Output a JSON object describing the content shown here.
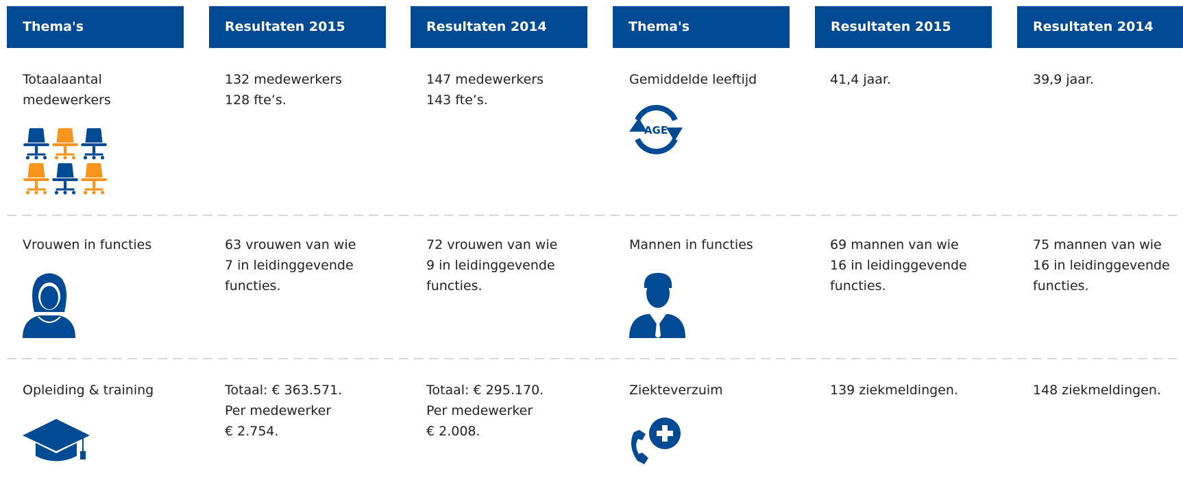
{
  "header": [
    "Thema's",
    "Resultaten 2015",
    "Resultaten 2014",
    "Thema's",
    "Resultaten 2015",
    "Resultaten 2014"
  ],
  "rows": [
    {
      "cells": [
        [
          "Totaalaantal",
          "medewerkers"
        ],
        [
          "132 medewerkers",
          "128 fte’s."
        ],
        [
          "147 medewerkers",
          "143 fte’s."
        ],
        [
          "Gemiddelde leeftijd"
        ],
        [
          "41,4 jaar."
        ],
        [
          "39,9 jaar."
        ]
      ]
    },
    {
      "cells": [
        [
          "Vrouwen in functies"
        ],
        [
          "63 vrouwen van wie",
          "7 in leidinggevende",
          "functies."
        ],
        [
          "72 vrouwen van wie",
          "9 in leidinggevende",
          "functies."
        ],
        [
          "Mannen in functies"
        ],
        [
          "69 mannen van wie",
          "16 in leidinggevende",
          "functies."
        ],
        [
          "75 mannen van wie",
          "16 in leidinggevende",
          "functies."
        ]
      ]
    },
    {
      "cells": [
        [
          "Opleiding & training"
        ],
        [
          "Totaal: € 363.571.",
          "Per medewerker",
          "€ 2.754."
        ],
        [
          "Totaal: € 295.170.",
          "Per medewerker",
          "€ 2.008."
        ],
        [
          "Ziekteverzuim"
        ],
        [
          "139 ziekmeldingen."
        ],
        [
          "148 ziekmeldingen."
        ]
      ]
    }
  ],
  "age_icon_label": "AGE"
}
